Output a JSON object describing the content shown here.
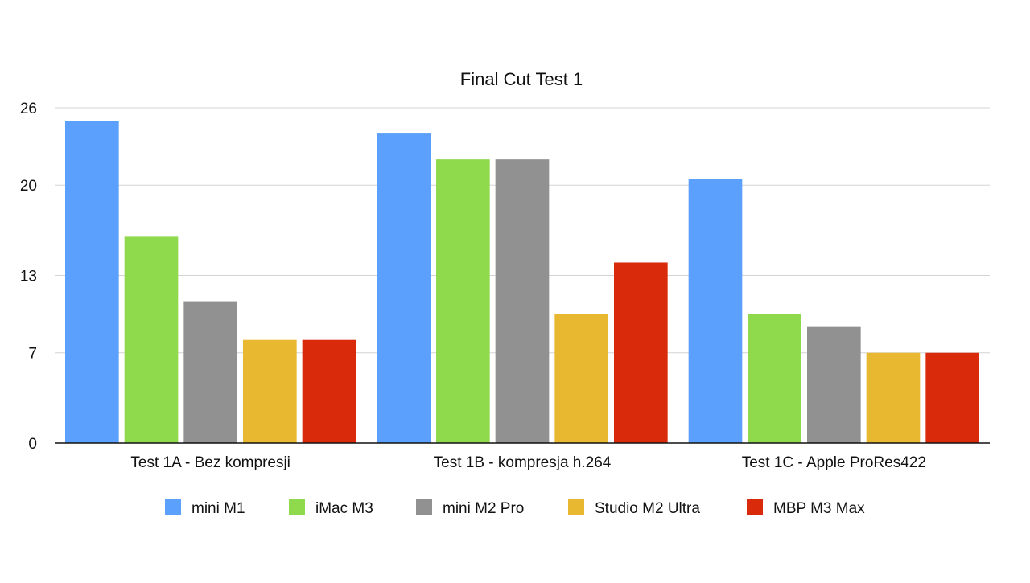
{
  "chart_data": {
    "type": "bar",
    "title": "Final Cut Test 1",
    "xlabel": "",
    "ylabel": "",
    "ylim": [
      0,
      26
    ],
    "yticks": [
      0,
      7,
      13,
      20,
      26
    ],
    "grid": true,
    "legend_position": "bottom",
    "categories": [
      "Test 1A - Bez kompresji",
      "Test 1B - kompresja h.264",
      "Test 1C - Apple ProRes422"
    ],
    "series": [
      {
        "name": "mini M1",
        "color": "#5AA0FC",
        "values": [
          25,
          24,
          20.5
        ]
      },
      {
        "name": "iMac M3",
        "color": "#8FD94D",
        "values": [
          16,
          22,
          10
        ]
      },
      {
        "name": "mini M2 Pro",
        "color": "#919191",
        "values": [
          11,
          22,
          9
        ]
      },
      {
        "name": "Studio M2 Ultra",
        "color": "#E8B830",
        "values": [
          8,
          10,
          7
        ]
      },
      {
        "name": "MBP M3 Max",
        "color": "#D92A0B",
        "values": [
          8,
          14,
          7
        ]
      }
    ]
  }
}
